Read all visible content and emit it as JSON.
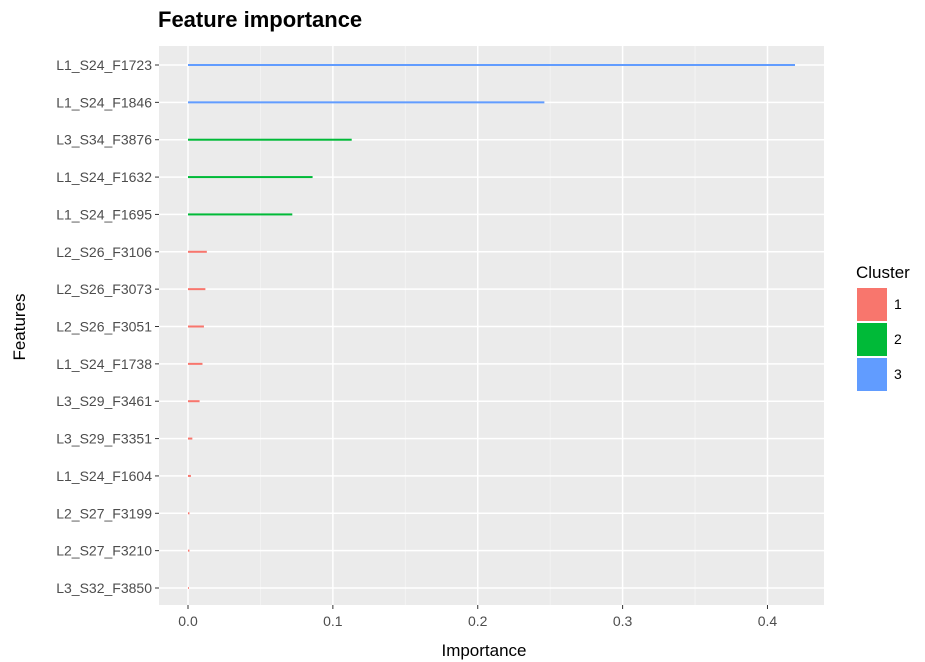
{
  "chart_data": {
    "type": "bar",
    "orientation": "horizontal",
    "title": "Feature importance",
    "xlabel": "Importance",
    "ylabel": "Features",
    "xlim": [
      -0.01,
      0.44
    ],
    "x_ticks": [
      "0.0",
      "0.1",
      "0.2",
      "0.3",
      "0.4"
    ],
    "x_tick_values": [
      0.0,
      0.1,
      0.2,
      0.3,
      0.4
    ],
    "grid": true,
    "background": "#ebebeb",
    "legend": {
      "title": "Cluster",
      "position": "right",
      "entries": [
        {
          "label": "1",
          "color": "#F8766D"
        },
        {
          "label": "2",
          "color": "#00BA38"
        },
        {
          "label": "3",
          "color": "#619CFF"
        }
      ]
    },
    "bars": [
      {
        "feature": "L1_S24_F1723",
        "importance": 0.419,
        "cluster": "3"
      },
      {
        "feature": "L1_S24_F1846",
        "importance": 0.246,
        "cluster": "3"
      },
      {
        "feature": "L3_S34_F3876",
        "importance": 0.113,
        "cluster": "2"
      },
      {
        "feature": "L1_S24_F1632",
        "importance": 0.086,
        "cluster": "2"
      },
      {
        "feature": "L1_S24_F1695",
        "importance": 0.072,
        "cluster": "2"
      },
      {
        "feature": "L2_S26_F3106",
        "importance": 0.013,
        "cluster": "1"
      },
      {
        "feature": "L2_S26_F3073",
        "importance": 0.012,
        "cluster": "1"
      },
      {
        "feature": "L2_S26_F3051",
        "importance": 0.011,
        "cluster": "1"
      },
      {
        "feature": "L1_S24_F1738",
        "importance": 0.01,
        "cluster": "1"
      },
      {
        "feature": "L3_S29_F3461",
        "importance": 0.008,
        "cluster": "1"
      },
      {
        "feature": "L3_S29_F3351",
        "importance": 0.003,
        "cluster": "1"
      },
      {
        "feature": "L1_S24_F1604",
        "importance": 0.002,
        "cluster": "1"
      },
      {
        "feature": "L2_S27_F3199",
        "importance": 0.001,
        "cluster": "1"
      },
      {
        "feature": "L2_S27_F3210",
        "importance": 0.001,
        "cluster": "1"
      },
      {
        "feature": "L3_S32_F3850",
        "importance": 0.0005,
        "cluster": "1"
      }
    ]
  }
}
